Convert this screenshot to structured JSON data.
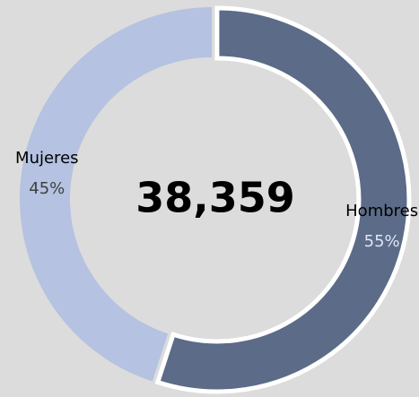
{
  "chart_data": {
    "type": "pie",
    "categories": [
      "Hombres",
      "Mujeres"
    ],
    "values": [
      55,
      45
    ],
    "value_labels": [
      "55%",
      "45%"
    ],
    "colors": [
      "#5b6b88",
      "#b5c2e1"
    ],
    "explode": [
      true,
      false
    ],
    "center_text": "38,359"
  }
}
